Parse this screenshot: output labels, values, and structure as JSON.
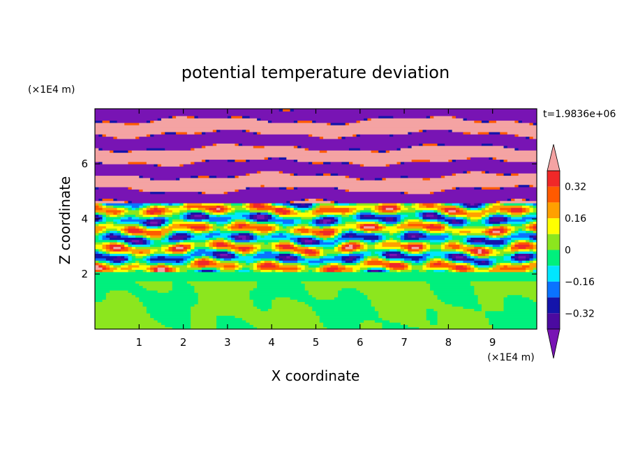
{
  "chart_data": {
    "type": "heatmap",
    "title": "potential temperature deviation",
    "xlabel": "X coordinate",
    "ylabel": "Z coordinate",
    "x_unit": "(×1E4 m)",
    "y_unit": "(×1E4 m)",
    "time_label": "t=1.9836e+06",
    "xlim": [
      0,
      10
    ],
    "ylim": [
      0,
      8
    ],
    "x_ticks": [
      "1",
      "2",
      "3",
      "4",
      "5",
      "6",
      "7",
      "8",
      "9"
    ],
    "y_ticks": [
      "2",
      "4",
      "6"
    ],
    "grid": false,
    "legend_position": "right",
    "colorbar": {
      "levels": [
        {
          "range": "above 0.40",
          "color": "#f4a3a3"
        },
        {
          "range": "0.32 to 0.40",
          "color": "#f02828"
        },
        {
          "range": "0.24 to 0.32",
          "color": "#ff5a00"
        },
        {
          "range": "0.16 to 0.24",
          "color": "#ffa000"
        },
        {
          "range": "0.08 to 0.16",
          "color": "#ffff00"
        },
        {
          "range": "0 to 0.08",
          "color": "#8ce61e"
        },
        {
          "range": "-0.08 to 0",
          "color": "#00f07d"
        },
        {
          "range": "-0.16 to -0.08",
          "color": "#00e6ff"
        },
        {
          "range": "-0.24 to -0.16",
          "color": "#0a73ff"
        },
        {
          "range": "-0.32 to -0.24",
          "color": "#1414aa"
        },
        {
          "range": "-0.40 to -0.32",
          "color": "#4b0aa0"
        },
        {
          "range": "below -0.40",
          "color": "#7814b4"
        }
      ],
      "tick_labels": [
        "0.32",
        "0.16",
        "0",
        "-0.16",
        "-0.32"
      ]
    },
    "field_summary": [
      {
        "z_range": [
          0,
          2
        ],
        "description": "mixed layer, values mostly -0.08 to 0.08 (green tones)"
      },
      {
        "z_range": [
          2,
          4.5
        ],
        "description": "turbulent transition zone with full range of values"
      },
      {
        "z_range": [
          4.5,
          8
        ],
        "description": "alternating horizontal layers of values above 0.40 and below -0.40"
      }
    ]
  }
}
